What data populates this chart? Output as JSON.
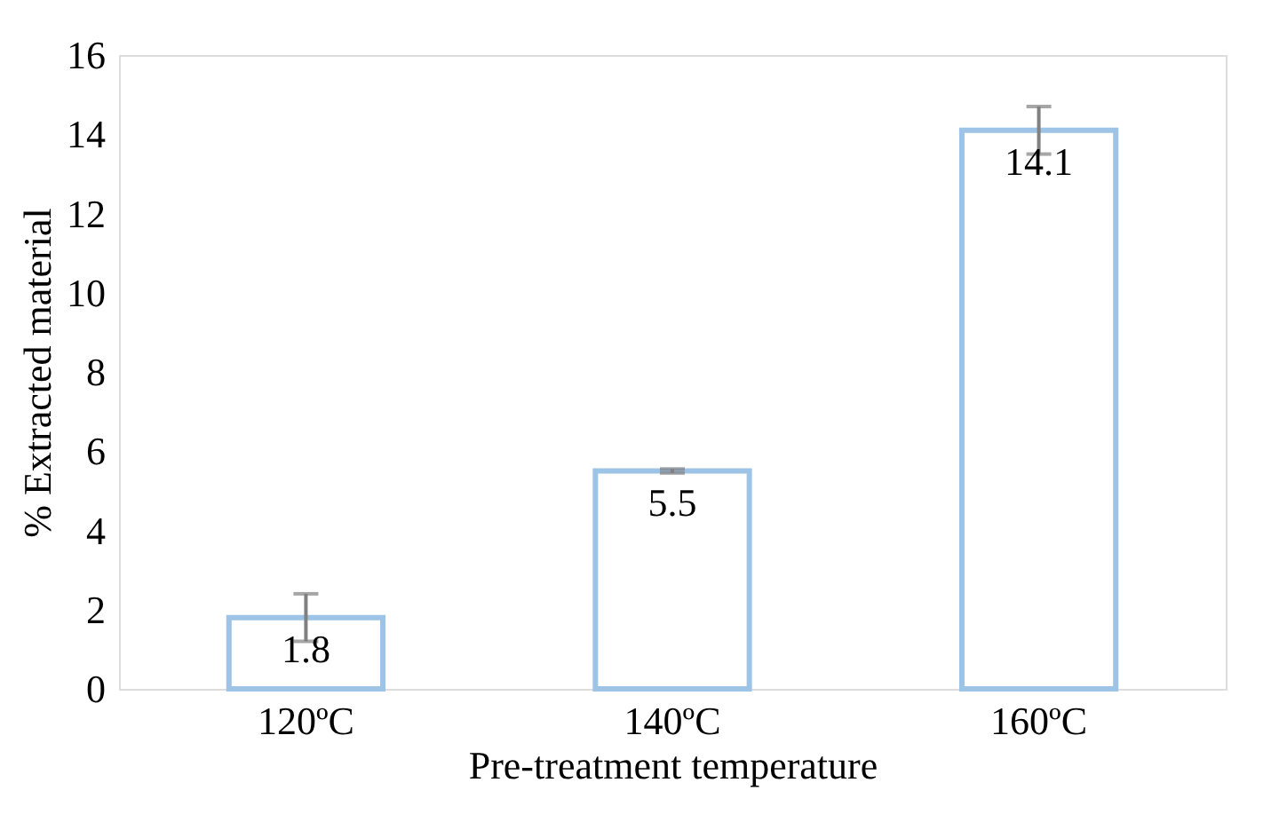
{
  "chart_data": {
    "type": "bar",
    "xlabel": "Pre-treatment temperature",
    "ylabel": "% Extracted material",
    "categories": [
      "120ºC",
      "140ºC",
      "160ºC"
    ],
    "series": [
      {
        "color": "#9dc3e6",
        "values": [
          1.8,
          5.5,
          14.1
        ],
        "errors": [
          0.6,
          0.05,
          0.6
        ]
      }
    ],
    "ylim": [
      0,
      16
    ],
    "yticks": [
      0,
      2,
      4,
      6,
      8,
      10,
      12,
      14,
      16
    ],
    "grid": false,
    "data_labels": true
  }
}
